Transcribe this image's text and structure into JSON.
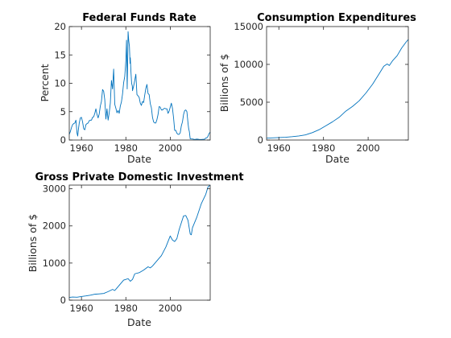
{
  "colors": {
    "series": "#0072BD",
    "axis": "#262626"
  },
  "chart_data": [
    {
      "type": "line",
      "title": "Federal Funds Rate",
      "xlabel": "Date",
      "ylabel": "Percent",
      "xlim": [
        1954.5,
        2018.0
      ],
      "ylim": [
        0,
        20
      ],
      "xticks": [
        1960,
        1980,
        2000
      ],
      "yticks": [
        0,
        5,
        10,
        15,
        20
      ],
      "grid": false,
      "series": [
        {
          "x": [
            1954.5,
            1955.0,
            1955.5,
            1956.0,
            1956.5,
            1957.0,
            1957.5,
            1958.0,
            1958.3,
            1958.6,
            1959.0,
            1959.5,
            1960.0,
            1960.5,
            1961.0,
            1961.5,
            1962.0,
            1962.5,
            1963.0,
            1963.5,
            1964.0,
            1964.5,
            1965.0,
            1965.5,
            1966.0,
            1966.5,
            1967.0,
            1967.5,
            1968.0,
            1968.5,
            1969.0,
            1969.5,
            1970.0,
            1970.5,
            1971.0,
            1971.5,
            1972.0,
            1972.5,
            1973.0,
            1973.5,
            1974.0,
            1974.5,
            1975.0,
            1975.5,
            1976.0,
            1976.5,
            1977.0,
            1977.5,
            1978.0,
            1978.5,
            1979.0,
            1979.5,
            1980.0,
            1980.3,
            1980.6,
            1980.9,
            1981.0,
            1981.3,
            1981.6,
            1981.9,
            1982.0,
            1982.3,
            1982.6,
            1982.9,
            1983.0,
            1983.5,
            1984.0,
            1984.5,
            1985.0,
            1985.5,
            1986.0,
            1986.5,
            1987.0,
            1987.5,
            1988.0,
            1988.5,
            1989.0,
            1989.5,
            1990.0,
            1990.5,
            1991.0,
            1991.5,
            1992.0,
            1992.5,
            1993.0,
            1993.5,
            1994.0,
            1994.5,
            1995.0,
            1995.5,
            1996.0,
            1996.5,
            1997.0,
            1997.5,
            1998.0,
            1998.5,
            1999.0,
            1999.5,
            2000.0,
            2000.5,
            2001.0,
            2001.5,
            2002.0,
            2002.5,
            2003.0,
            2003.5,
            2004.0,
            2004.5,
            2005.0,
            2005.5,
            2006.0,
            2006.5,
            2007.0,
            2007.5,
            2008.0,
            2008.3,
            2008.6,
            2009.0,
            2010.0,
            2011.0,
            2012.0,
            2013.0,
            2014.0,
            2015.0,
            2015.5,
            2016.0,
            2016.5,
            2017.0,
            2017.5,
            2018.0
          ],
          "y": [
            1.0,
            1.5,
            2.2,
            2.7,
            2.9,
            3.0,
            3.5,
            1.2,
            0.7,
            1.8,
            3.0,
            3.9,
            4.0,
            3.2,
            2.0,
            1.8,
            2.7,
            2.9,
            3.0,
            3.4,
            3.5,
            3.5,
            4.0,
            4.1,
            4.7,
            5.5,
            4.5,
            3.9,
            4.6,
            6.0,
            6.8,
            8.9,
            8.6,
            7.1,
            3.7,
            5.5,
            3.5,
            4.8,
            6.5,
            10.5,
            9.0,
            12.5,
            6.3,
            5.6,
            4.8,
            5.2,
            4.7,
            6.0,
            6.7,
            8.1,
            10.1,
            11.2,
            14.0,
            17.6,
            9.0,
            15.9,
            19.1,
            17.5,
            16.5,
            13.5,
            14.5,
            12.0,
            10.0,
            9.5,
            8.7,
            9.5,
            10.5,
            11.6,
            8.0,
            7.8,
            7.5,
            6.5,
            6.1,
            6.8,
            6.6,
            7.9,
            9.1,
            9.8,
            8.2,
            8.0,
            6.4,
            5.7,
            4.0,
            3.2,
            3.0,
            3.0,
            3.6,
            4.5,
            5.9,
            5.8,
            5.3,
            5.3,
            5.5,
            5.6,
            5.5,
            5.5,
            4.7,
            5.1,
            5.8,
            6.5,
            5.6,
            3.9,
            1.7,
            1.7,
            1.2,
            1.0,
            1.0,
            1.3,
            2.5,
            3.2,
            4.5,
            5.2,
            5.3,
            5.0,
            3.0,
            2.0,
            1.5,
            0.2,
            0.18,
            0.1,
            0.16,
            0.11,
            0.09,
            0.13,
            0.14,
            0.37,
            0.39,
            0.66,
            1.15,
            1.4
          ]
        }
      ]
    },
    {
      "type": "line",
      "title": "Consumption Expenditures",
      "xlabel": "Date",
      "ylabel": "Billions of $",
      "xlim": [
        1954.5,
        2018.0
      ],
      "ylim": [
        0,
        15000
      ],
      "xticks": [
        1960,
        1980,
        2000
      ],
      "yticks": [
        0,
        5000,
        10000,
        15000
      ],
      "grid": false,
      "series": [
        {
          "x": [
            1954.5,
            1957,
            1960,
            1963,
            1966,
            1969,
            1972,
            1975,
            1978,
            1981,
            1984,
            1987,
            1990,
            1993,
            1996,
            1999,
            2002,
            2005,
            2007,
            2008.5,
            2009.5,
            2011,
            2013,
            2015,
            2017,
            2018
          ],
          "y": [
            250,
            290,
            330,
            370,
            440,
            540,
            690,
            980,
            1360,
            1880,
            2400,
            3000,
            3820,
            4440,
            5190,
            6210,
            7380,
            8790,
            9750,
            10050,
            9850,
            10500,
            11150,
            12150,
            12950,
            13300
          ]
        }
      ]
    },
    {
      "type": "line",
      "title": "Gross Private Domestic Investment",
      "xlabel": "Date",
      "ylabel": "Billions of $",
      "xlim": [
        1954.5,
        2018.0
      ],
      "ylim": [
        0,
        3100
      ],
      "xticks": [
        1960,
        1980,
        2000
      ],
      "yticks": [
        0,
        1000,
        2000,
        3000
      ],
      "grid": false,
      "series": [
        {
          "x": [
            1954.5,
            1956,
            1958,
            1960,
            1962,
            1964,
            1966,
            1968,
            1970,
            1972,
            1974,
            1975,
            1976,
            1978,
            1979,
            1980,
            1981,
            1982,
            1983,
            1984,
            1986,
            1988,
            1990,
            1991,
            1992,
            1994,
            1996,
            1998,
            2000,
            2001,
            2002,
            2003,
            2004,
            2006,
            2007,
            2008,
            2009,
            2009.5,
            2010,
            2012,
            2014,
            2016,
            2017,
            2018
          ],
          "y": [
            75,
            85,
            80,
            100,
            115,
            135,
            160,
            170,
            180,
            230,
            290,
            260,
            330,
            470,
            540,
            560,
            580,
            510,
            560,
            710,
            740,
            810,
            900,
            870,
            920,
            1060,
            1200,
            1430,
            1730,
            1620,
            1580,
            1660,
            1900,
            2270,
            2280,
            2150,
            1780,
            1760,
            1950,
            2240,
            2600,
            2850,
            3050,
            3100
          ]
        }
      ]
    }
  ]
}
